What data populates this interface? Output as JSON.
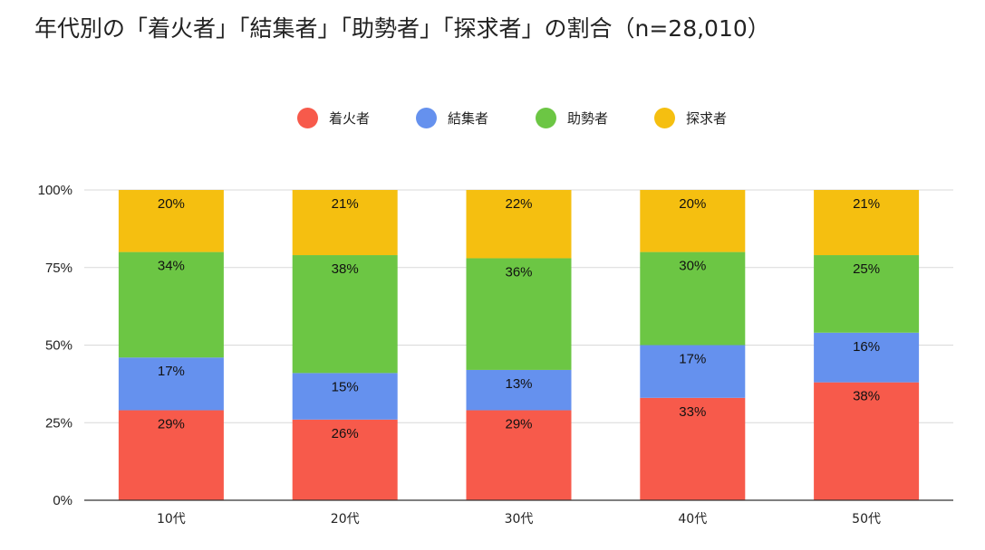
{
  "title": "年代別の「着火者」「結集者」「助勢者」「探求者」の割合（n=28,010）",
  "legend": [
    {
      "name": "着火者",
      "color": "#F75A4B"
    },
    {
      "name": "結集者",
      "color": "#6591EE"
    },
    {
      "name": "助勢者",
      "color": "#6CC644"
    },
    {
      "name": "探求者",
      "color": "#F5BF10"
    }
  ],
  "chart_data": {
    "type": "bar",
    "stacked": true,
    "percent": true,
    "title": "年代別の「着火者」「結集者」「助勢者」「探求者」の割合（n=28,010）",
    "categories": [
      "10代",
      "20代",
      "30代",
      "40代",
      "50代"
    ],
    "series": [
      {
        "name": "着火者",
        "color": "#F75A4B",
        "values": [
          29,
          26,
          29,
          33,
          38
        ],
        "labels": [
          "29%",
          "26%",
          "29%",
          "33%",
          "38%"
        ]
      },
      {
        "name": "結集者",
        "color": "#6591EE",
        "values": [
          17,
          15,
          13,
          17,
          16
        ],
        "labels": [
          "17%",
          "15%",
          "13%",
          "17%",
          "16%"
        ]
      },
      {
        "name": "助勢者",
        "color": "#6CC644",
        "values": [
          34,
          38,
          36,
          30,
          25
        ],
        "labels": [
          "34%",
          "38%",
          "36%",
          "30%",
          "25%"
        ]
      },
      {
        "name": "探求者",
        "color": "#F5BF10",
        "values": [
          20,
          21,
          22,
          20,
          21
        ],
        "labels": [
          "20%",
          "21%",
          "22%",
          "20%",
          "21%"
        ]
      }
    ],
    "y_ticks": [
      "0%",
      "25%",
      "50%",
      "75%",
      "100%"
    ],
    "y_tick_values": [
      0,
      25,
      50,
      75,
      100
    ],
    "ylim": [
      0,
      100
    ],
    "legend_position": "top",
    "grid": true
  }
}
